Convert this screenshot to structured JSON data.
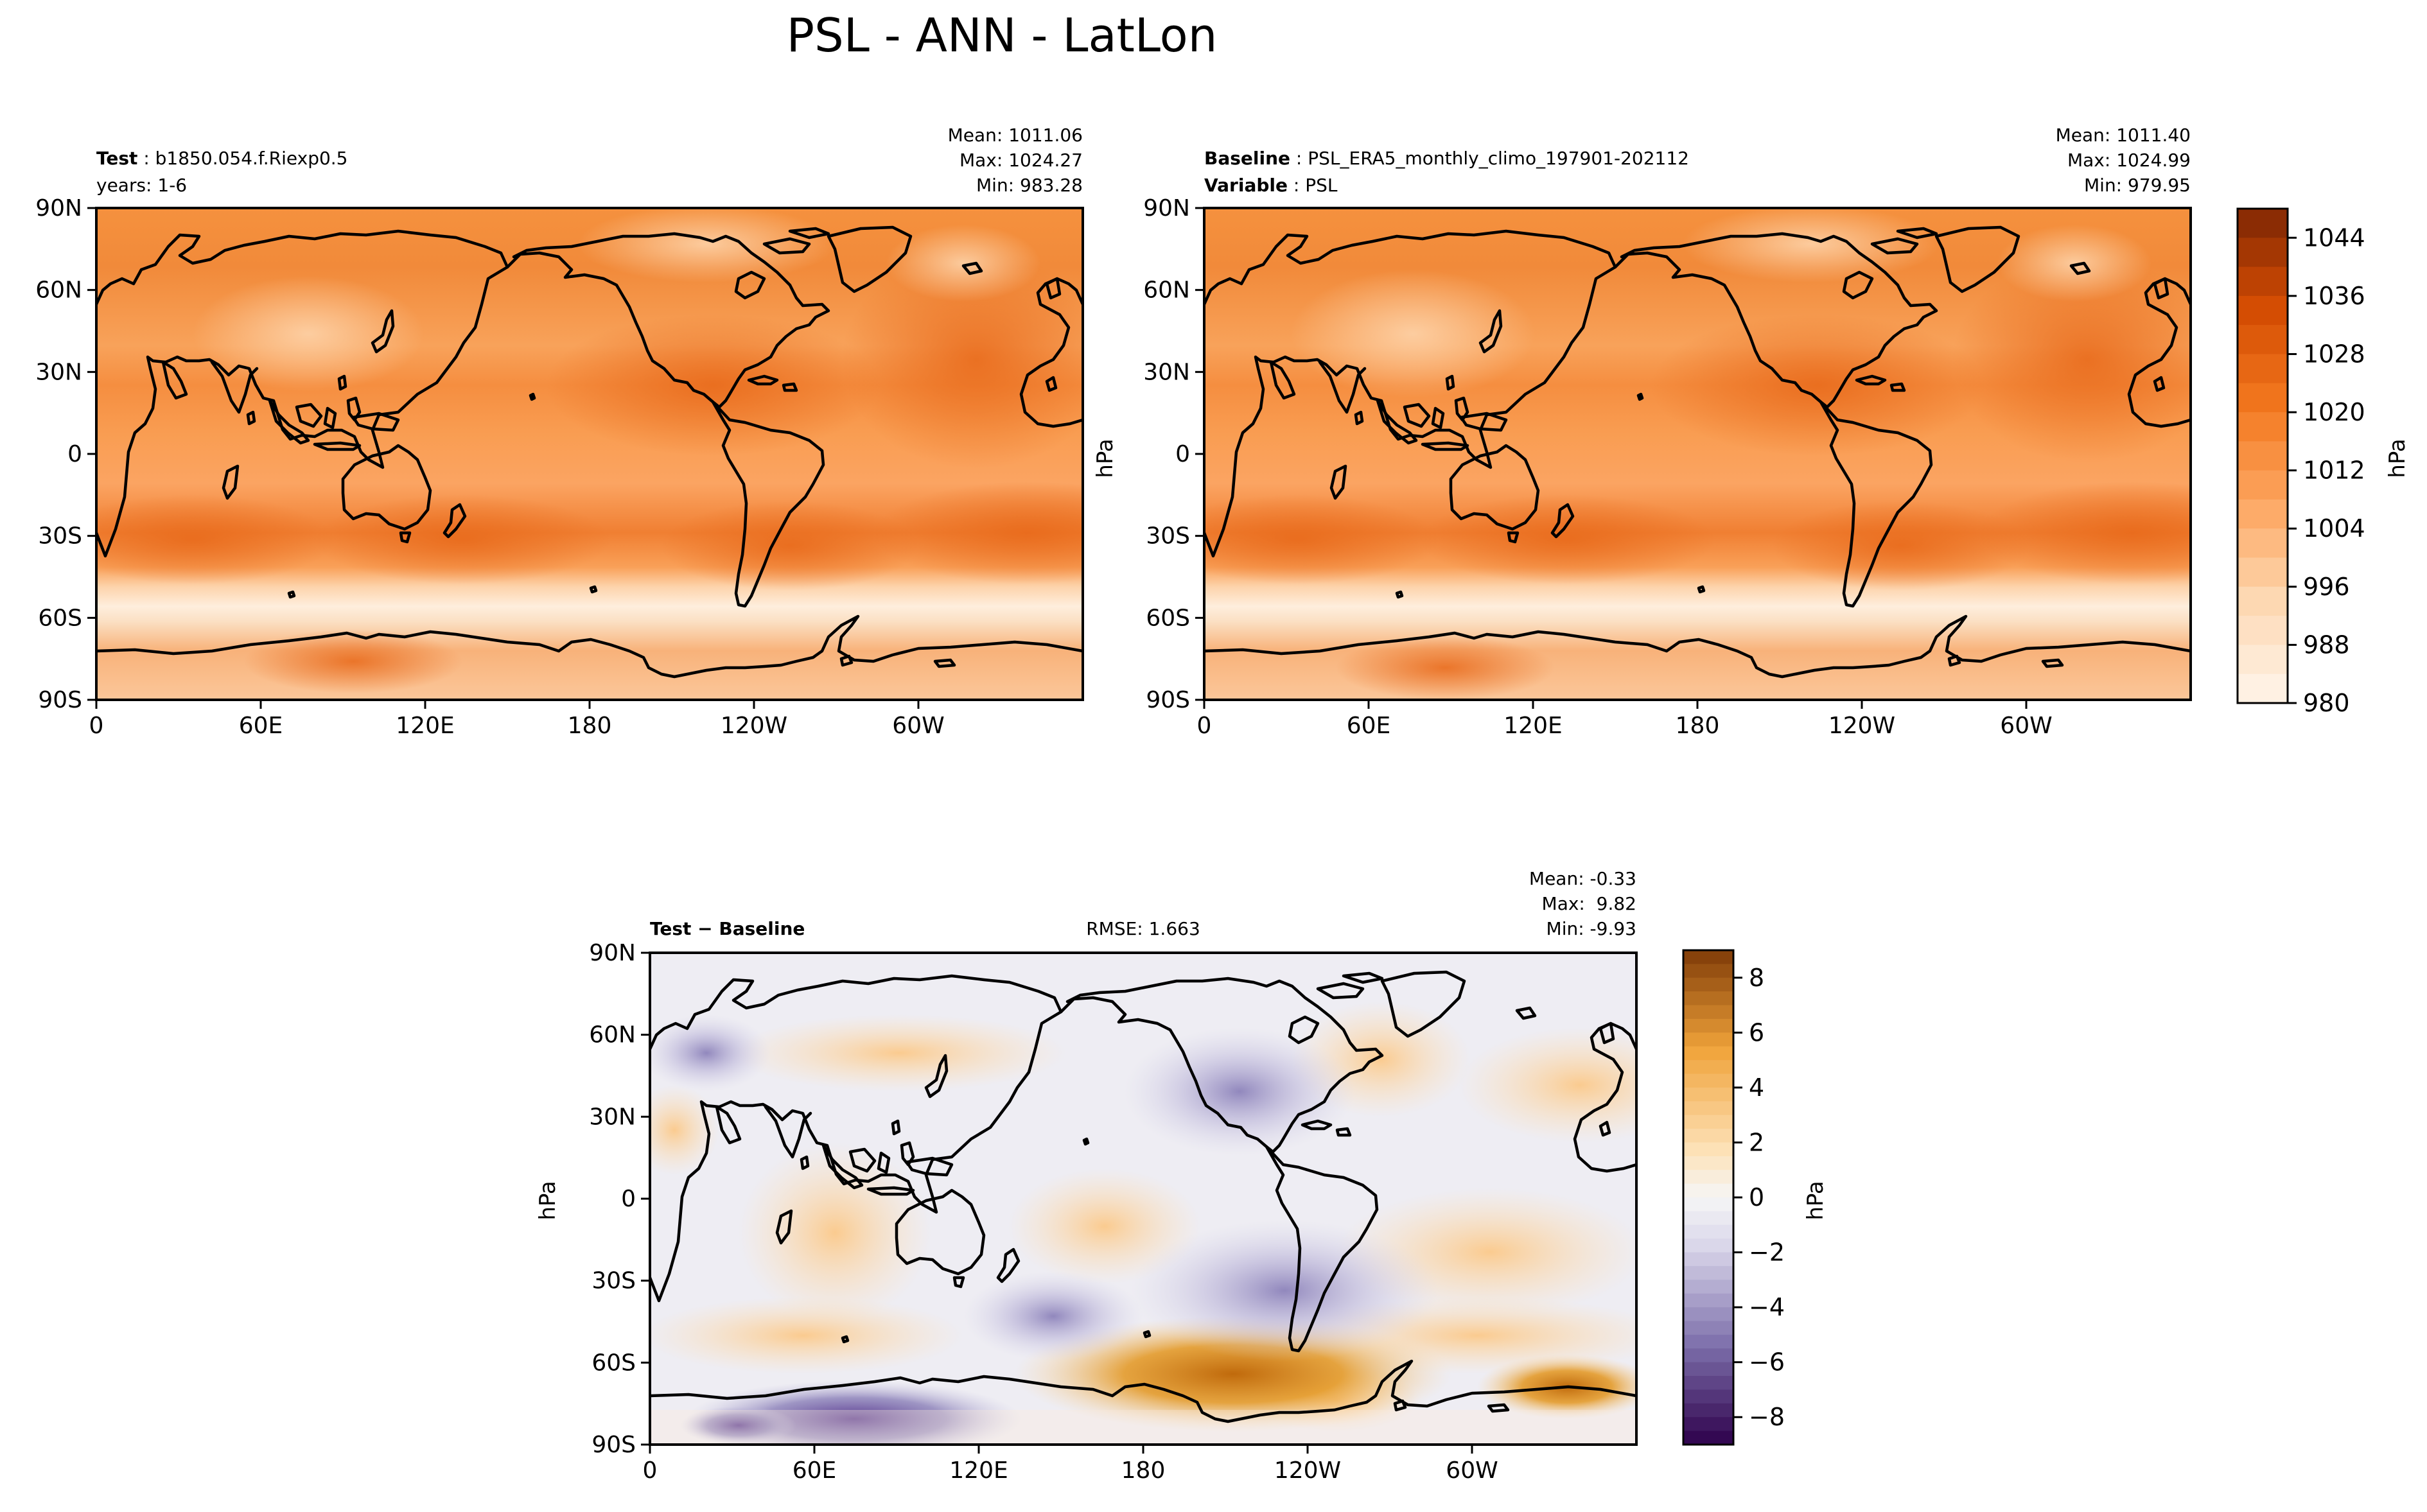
{
  "figure": {
    "title": "PSL - ANN - LatLon"
  },
  "panels": {
    "test": {
      "label_bold": "Test",
      "label_rest": " : b1850.054.f.Riexp0.5",
      "line2": "years: 1-6",
      "stats": [
        "Mean: 1011.06",
        "Max: 1024.27",
        "Min: 983.28"
      ]
    },
    "baseline": {
      "label_bold": "Baseline",
      "label_rest": " : PSL_ERA5_monthly_climo_197901-202112",
      "line2_bold": "Variable",
      "line2_rest": " : PSL",
      "stats": [
        "Mean: 1011.40",
        "Max: 1024.99",
        "Min: 979.95"
      ]
    },
    "diff": {
      "label": "Test − Baseline",
      "rmse": "RMSE: 1.663",
      "stats": [
        "Mean: -0.33",
        "Max:  9.82",
        "Min: -9.93"
      ]
    }
  },
  "chart_data": [
    {
      "type": "heatmap",
      "title": "Test",
      "variable": "PSL",
      "units": "hPa",
      "xticks": [
        "0",
        "60E",
        "120E",
        "180",
        "120W",
        "60W"
      ],
      "yticks": [
        "90N",
        "60N",
        "30N",
        "0",
        "30S",
        "60S",
        "90S"
      ],
      "stats": {
        "mean": 1011.06,
        "max": 1024.27,
        "min": 983.28
      },
      "colorbar": {
        "label": "hPa",
        "range": [
          980,
          1048
        ],
        "ticks": [
          980,
          988,
          996,
          1004,
          1012,
          1020,
          1028,
          1036,
          1044
        ],
        "colormap": "Oranges"
      }
    },
    {
      "type": "heatmap",
      "title": "Baseline",
      "variable": "PSL",
      "units": "hPa",
      "xticks": [
        "0",
        "60E",
        "120E",
        "180",
        "120W",
        "60W"
      ],
      "yticks": [
        "90N",
        "60N",
        "30N",
        "0",
        "30S",
        "60S",
        "90S"
      ],
      "stats": {
        "mean": 1011.4,
        "max": 1024.99,
        "min": 979.95
      },
      "colorbar": {
        "label": "hPa",
        "range": [
          980,
          1048
        ],
        "ticks": [
          980,
          988,
          996,
          1004,
          1012,
          1020,
          1028,
          1036,
          1044
        ],
        "colormap": "Oranges"
      }
    },
    {
      "type": "heatmap",
      "title": "Test − Baseline",
      "variable": "PSL",
      "units": "hPa",
      "xticks": [
        "0",
        "60E",
        "120E",
        "180",
        "120W",
        "60W"
      ],
      "yticks": [
        "90N",
        "60N",
        "30N",
        "0",
        "30S",
        "60S",
        "90S"
      ],
      "rmse": 1.663,
      "stats": {
        "mean": -0.33,
        "max": 9.82,
        "min": -9.93
      },
      "colorbar": {
        "label": "hPa",
        "range": [
          -9,
          9
        ],
        "ticks": [
          8,
          6,
          4,
          2,
          0,
          -2,
          -4,
          -6,
          -8
        ],
        "tick_labels": [
          "8",
          "6",
          "4",
          "2",
          "0",
          "−2",
          "−4",
          "−6",
          "−8"
        ],
        "colormap": "PuOr_r"
      }
    }
  ]
}
